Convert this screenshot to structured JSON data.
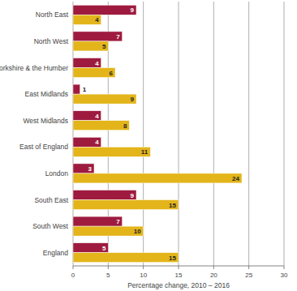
{
  "chart_data": {
    "type": "bar",
    "orientation": "horizontal",
    "categories": [
      "North East",
      "North West",
      "Yorkshire & the Humber",
      "East Midlands",
      "West Midlands",
      "East of England",
      "London",
      "South East",
      "South West",
      "England"
    ],
    "series": [
      {
        "color": "#9e1b3f",
        "values": [
          9,
          7,
          4,
          1,
          4,
          4,
          3,
          9,
          7,
          5
        ]
      },
      {
        "color": "#e3b51b",
        "values": [
          4,
          5,
          6,
          9,
          8,
          11,
          24,
          15,
          10,
          15
        ]
      }
    ],
    "x_label": "Percentage change, 2010 – 2016",
    "xlim": [
      0,
      30
    ],
    "xticks": [
      0,
      5,
      10,
      15,
      20,
      25,
      30
    ],
    "grid": true,
    "data_labels": true
  }
}
